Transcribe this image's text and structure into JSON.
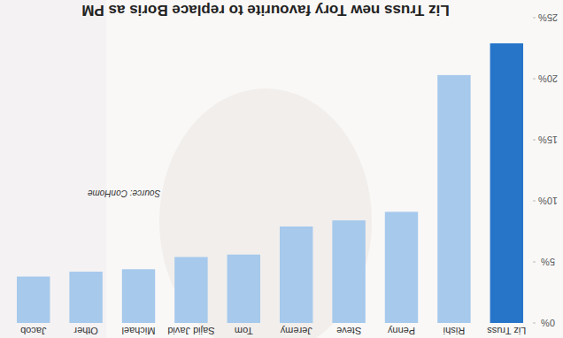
{
  "chart_data": {
    "type": "bar",
    "title": "Liz Truss new Tory favourite to replace Boris as PM",
    "annotations": [
      "Source: ConHome"
    ],
    "categories": [
      "Jacob",
      "Other",
      "Michael",
      "Sajid Javid",
      "Tom",
      "Jeremy",
      "Steve",
      "Penny",
      "Rishi",
      "Liz Truss"
    ],
    "values": [
      3.8,
      4.2,
      4.4,
      5.4,
      5.6,
      7.9,
      8.4,
      9.1,
      20.3,
      22.9
    ],
    "colors": [
      "#a6c9ec",
      "#a6c9ec",
      "#a6c9ec",
      "#a6c9ec",
      "#a6c9ec",
      "#a6c9ec",
      "#a6c9ec",
      "#a6c9ec",
      "#a6c9ec",
      "#2775c9"
    ],
    "ylim": [
      0,
      25
    ],
    "yticks": [
      {
        "value": 0,
        "label": "0%"
      },
      {
        "value": 5,
        "label": "5%"
      },
      {
        "value": 10,
        "label": "10%"
      },
      {
        "value": 15,
        "label": "15%"
      },
      {
        "value": 20,
        "label": "20%"
      },
      {
        "value": 25,
        "label": "25%"
      }
    ],
    "grid": false
  }
}
